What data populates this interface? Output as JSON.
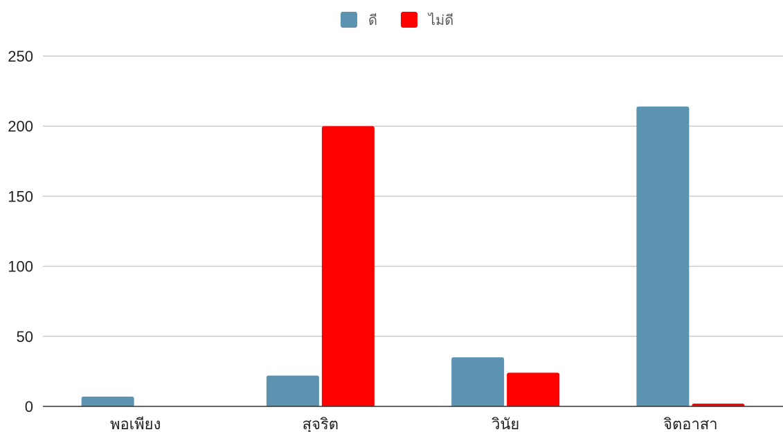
{
  "chart_data": {
    "type": "bar",
    "categories": [
      "พอเพียง",
      "สุจริต",
      "วินัย",
      "จิตอาสา"
    ],
    "series": [
      {
        "name": "ดี",
        "color": "#5b93b1",
        "values": [
          7,
          22,
          35,
          214
        ]
      },
      {
        "name": "ไม่ดี",
        "color": "#ff0000",
        "values": [
          0,
          200,
          24,
          2
        ]
      }
    ],
    "ylim": [
      0,
      250
    ],
    "yticks": [
      0,
      50,
      100,
      150,
      200,
      250
    ],
    "grid": true,
    "legend": "top-center",
    "title": "",
    "xlabel": "",
    "ylabel": ""
  }
}
